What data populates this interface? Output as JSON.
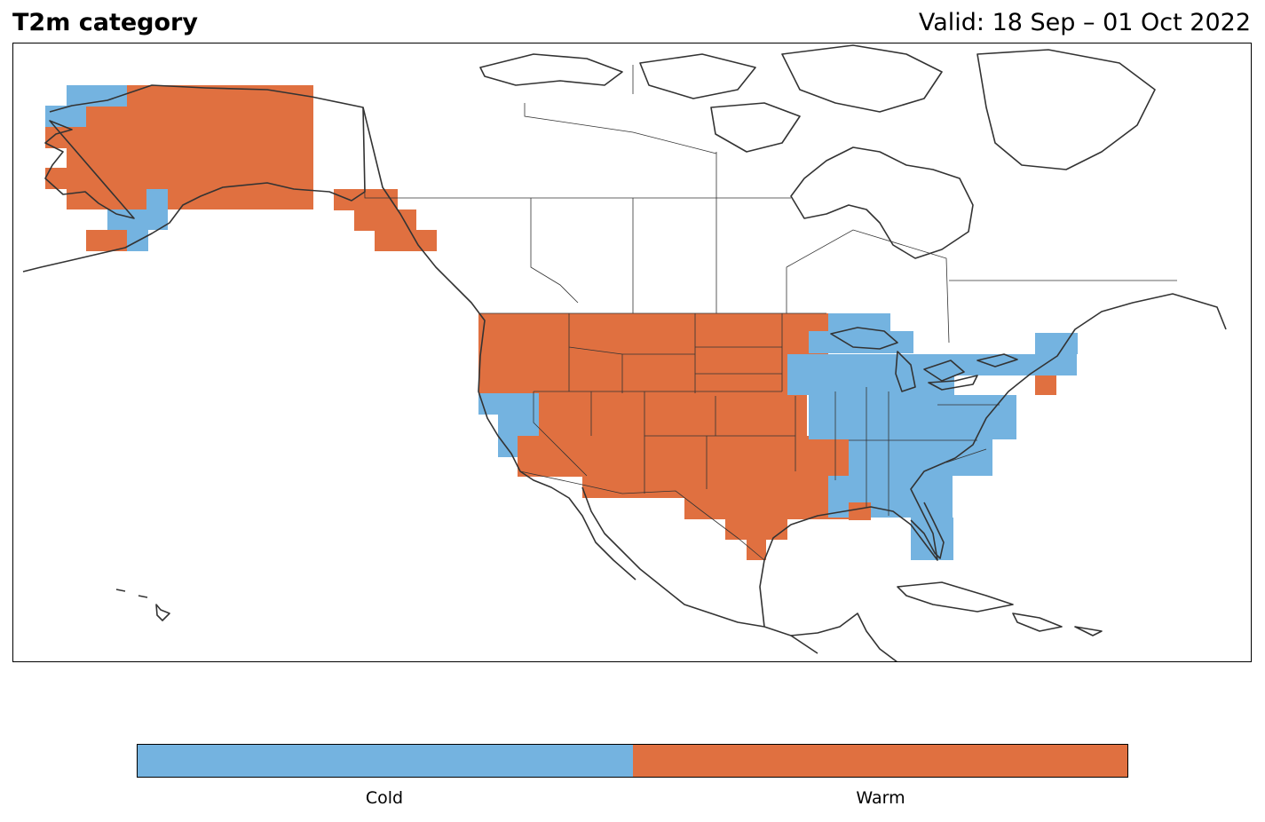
{
  "header": {
    "title": "T2m category",
    "valid": "Valid: 18 Sep – 01 Oct 2022"
  },
  "colors": {
    "cold": "#74b3e0",
    "warm": "#e07040",
    "outline": "#333333"
  },
  "legend": {
    "categories": [
      {
        "label": "Cold",
        "color": "#74b3e0"
      },
      {
        "label": "Warm",
        "color": "#e07040"
      }
    ]
  }
}
